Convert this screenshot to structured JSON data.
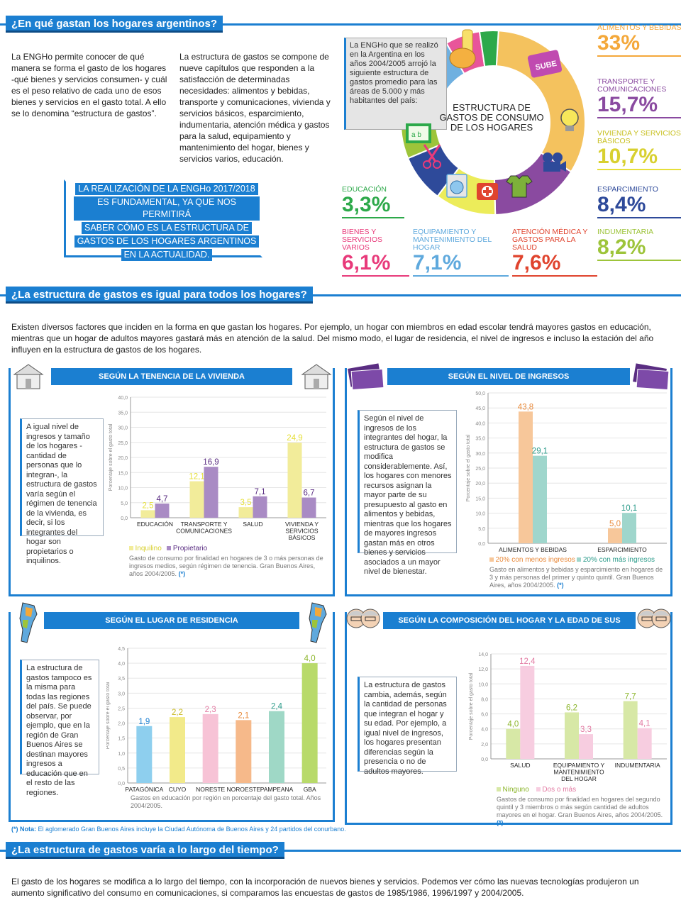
{
  "section1": {
    "title": "¿En qué gastan los hogares argentinos?",
    "para1": "La ENGHo permite conocer de qué manera se forma el gasto de los hogares -qué bienes y servicios consumen- y cuál es el peso relativo de cada uno de esos bienes y servicios en el gasto total. A ello se lo denomina “estructura de gastos”.",
    "para2": "La estructura de gastos se compone de nueve capítulos que responden a la satisfacción de determinadas necesidades: alimentos y bebidas, transporte y comunicaciones, vivienda y servicios básicos, esparcimiento, indumentaria, atención médica y gastos para la salud, equipamiento y mantenimiento del hogar, bienes y servicios varios, educación.",
    "callout": [
      "LA REALIZACIÓN DE LA ENGHo 2017/2018",
      "ES FUNDAMENTAL, YA QUE NOS PERMITIRÁ",
      "SABER CÓMO ES LA ESTRUCTURA DE",
      "GASTOS DE LOS HOGARES ARGENTINOS",
      "EN LA ACTUALIDAD."
    ],
    "donut_note": "La ENGHo que se realizó en la Argentina en los años 2004/2005 arrojó la siguiente estructura de gastos promedio para las áreas de 5.000 y más habitantes del país:",
    "donut_center": "ESTRUCTURA DE GASTOS DE CONSUMO DE LOS HOGARES",
    "categories": [
      {
        "label": "ALIMENTOS Y BEBIDAS",
        "value": "33%",
        "color": "#f4a83a"
      },
      {
        "label": "TRANSPORTE Y COMUNICACIONES",
        "value": "15,7%",
        "color": "#8a4aa0"
      },
      {
        "label": "VIVIENDA Y SERVICIOS BÁSICOS",
        "value": "10,7%",
        "color": "#e6df3a"
      },
      {
        "label": "ESPARCIMIENTO",
        "value": "8,4%",
        "color": "#2e4a9a"
      },
      {
        "label": "INDUMENTARIA",
        "value": "8,2%",
        "color": "#9dc43a"
      },
      {
        "label": "ATENCIÓN MÉDICA Y GASTOS PARA LA SALUD",
        "value": "7,6%",
        "color": "#e0442e"
      },
      {
        "label": "EQUIPAMIENTO Y MANTENIMIENTO DEL HOGAR",
        "value": "7,1%",
        "color": "#5fa9dd"
      },
      {
        "label": "BIENES Y SERVICIOS VARIOS",
        "value": "6,1%",
        "color": "#e83a7a"
      },
      {
        "label": "EDUCACIÓN",
        "value": "3,3%",
        "color": "#2da94a"
      }
    ]
  },
  "section2": {
    "title": "¿La estructura de gastos es igual para todos los hogares?",
    "para": "Existen diversos factores que inciden en la forma en que gastan los hogares. Por ejemplo, un hogar con miembros en edad escolar tendrá mayores gastos en educación, mientras que un hogar de adultos mayores gastará más en atención de la salud. Del mismo modo, el lugar de residencia, el nivel de ingresos e incluso la estación del año influyen en la estructura de gastos de los hogares.",
    "panel1": {
      "head": "SEGÚN LA TENENCIA DE LA VIVIENDA",
      "text": "A igual nivel de ingresos y tamaño de los hogares -cantidad de personas que lo integran-, la estructura de gastos varía según el régimen de tenencia de la vivienda, es decir, si los integrantes del hogar son propietarios o inquilinos.",
      "legend": [
        "Inquilino",
        "Propietario"
      ],
      "caption": "Gasto de consumo por finalidad en hogares de 3 o más personas de ingresos medios, según régimen de tenencia. Gran Buenos Aires, años 2004/2005.",
      "caption_mark": "(*)"
    },
    "panel2": {
      "head": "SEGÚN EL NIVEL DE INGRESOS",
      "text": "Según el nivel de ingresos de los integrantes del hogar, la estructura de gastos se modifica considerablemente. Así, los hogares con menores recursos asignan la mayor parte de su presupuesto al gasto en alimentos y bebidas, mientras que los hogares de mayores ingresos gastan más en otros bienes y servicios asociados a un mayor nivel de bienestar.",
      "legend": [
        "20% con menos ingresos",
        "20% con más ingresos"
      ],
      "caption": "Gasto en alimentos y bebidas y esparcimiento en hogares de 3 y más personas del primer y quinto quintil. Gran Buenos Aires, años 2004/2005.",
      "caption_mark": "(*)"
    },
    "panel3": {
      "head": "SEGÚN EL LUGAR DE RESIDENCIA",
      "text": "La estructura de gastos tampoco es la misma para todas las regiones del país. Se puede observar, por ejemplo, que en la región de Gran Buenos Aires se destinan mayores ingresos a educación que en el resto de las regiones.",
      "caption": "Gastos en educación por región en porcentaje del gasto total. Años 2004/2005."
    },
    "panel4": {
      "head": "SEGÚN LA COMPOSICIÓN DEL HOGAR Y LA EDAD DE SUS MIEMBROS",
      "text": "La estructura de gastos cambia, además, según la cantidad de personas que integran el hogar y su edad. Por ejemplo, a igual nivel de ingresos, los hogares presentan diferencias según la presencia o no de adultos mayores.",
      "legend": [
        "Ninguno",
        "Dos o más"
      ],
      "caption": "Gastos de consumo por finalidad en hogares del segundo quintil y 3 miembros o más según cantidad de adultos mayores en el hogar. Gran Buenos Aires, años 2004/2005.",
      "caption_mark": "(*)"
    },
    "footnote_label": "(*) Nota:",
    "footnote": "El aglomerado Gran Buenos Aires incluye la Ciudad Autónoma de Buenos Aires y 24 partidos del conurbano."
  },
  "section3": {
    "title": "¿La estructura de gastos varía a lo largo del tiempo?",
    "para": "El gasto de los hogares se modifica a lo largo del tiempo, con la incorporación de nuevos bienes y servicios. Podemos ver cómo las nuevas tecnologías produjeron un aumento significativo del consumo en comunicaciones, si comparamos las encuestas de gastos de 1985/1986, 1996/1997 y 2004/2005."
  },
  "icons": {
    "sube_label": "SUBE",
    "notebook_label": "a b"
  },
  "chart_data": [
    {
      "type": "pie",
      "title": "ESTRUCTURA DE GASTOS DE CONSUMO DE LOS HOGARES",
      "categories": [
        "ALIMENTOS Y BEBIDAS",
        "TRANSPORTE Y COMUNICACIONES",
        "VIVIENDA Y SERVICIOS BÁSICOS",
        "ESPARCIMIENTO",
        "INDUMENTARIA",
        "ATENCIÓN MÉDICA Y GASTOS PARA LA SALUD",
        "EQUIPAMIENTO Y MANTENIMIENTO DEL HOGAR",
        "BIENES Y SERVICIOS VARIOS",
        "EDUCACIÓN"
      ],
      "values": [
        33,
        15.7,
        10.7,
        8.4,
        8.2,
        7.6,
        7.1,
        6.1,
        3.3
      ],
      "colors": [
        "#f4c25e",
        "#8a4aa0",
        "#ecec5a",
        "#2e4a9a",
        "#9dc43a",
        "#e0442e",
        "#6fb0e0",
        "#e8559a",
        "#2da94a"
      ]
    },
    {
      "type": "bar",
      "categories": [
        "EDUCACIÓN",
        "TRANSPORTE Y COMUNICACIONES",
        "SALUD",
        "VIVIENDA Y SERVICIOS BÁSICOS"
      ],
      "series": [
        {
          "name": "Inquilino",
          "values": [
            2.5,
            12.1,
            3.5,
            24.9
          ],
          "color": "#f2ec9a",
          "label_color": "#e6df3a"
        },
        {
          "name": "Propietario",
          "values": [
            4.7,
            16.9,
            7.1,
            6.7
          ],
          "color": "#a98bc4",
          "label_color": "#5a2d82"
        }
      ],
      "ylabel": "Porcentaje sobre el gasto total",
      "ylim": [
        0,
        40
      ],
      "yticks": [
        "0,0",
        "5,0",
        "10,0",
        "15,0",
        "20,0",
        "25,0",
        "30,0",
        "35,0",
        "40,0"
      ],
      "value_labels": [
        [
          "2,5",
          "12,1",
          "3,5",
          "24,9"
        ],
        [
          "4,7",
          "16,9",
          "7,1",
          "6,7"
        ]
      ]
    },
    {
      "type": "bar",
      "categories": [
        "ALIMENTOS Y BEBIDAS",
        "ESPARCIMIENTO"
      ],
      "series": [
        {
          "name": "20% con menos ingresos",
          "values": [
            43.8,
            5.0
          ],
          "color": "#f7c79a",
          "label_color": "#e8893a"
        },
        {
          "name": "20% con más ingresos",
          "values": [
            29.1,
            10.1
          ],
          "color": "#9fd6cc",
          "label_color": "#2b9b8a"
        }
      ],
      "ylabel": "Porcentaje sobre el gasto total",
      "ylim": [
        0,
        50
      ],
      "yticks": [
        "0,0",
        "5,0",
        "10,0",
        "15,0",
        "20,0",
        "25,0",
        "30,0",
        "35,0",
        "40,0",
        "45,0",
        "50,0"
      ],
      "value_labels": [
        [
          "43,8",
          "5,0"
        ],
        [
          "29,1",
          "10,1"
        ]
      ]
    },
    {
      "type": "bar",
      "categories": [
        "PATAGÓNICA",
        "CUYO",
        "NORESTE",
        "NOROESTE",
        "PAMPEANA",
        "GBA"
      ],
      "values": [
        1.9,
        2.2,
        2.3,
        2.1,
        2.4,
        4.0
      ],
      "value_labels": [
        "1,9",
        "2,2",
        "2,3",
        "2,1",
        "2,4",
        "4,0"
      ],
      "colors": [
        "#8ecfee",
        "#f2ea8a",
        "#f7c3d6",
        "#f6b98a",
        "#9fd8c6",
        "#b8da6a"
      ],
      "label_colors": [
        "#1b7fd1",
        "#c8b820",
        "#e27aa2",
        "#e8893a",
        "#2b9b8a",
        "#8bb52a"
      ],
      "ylabel": "Porcentaje sobre el gasto total",
      "ylim": [
        0,
        4.5
      ],
      "yticks": [
        "0,0",
        "0,5",
        "1,0",
        "1,5",
        "2,0",
        "2,5",
        "3,0",
        "3,5",
        "4,0",
        "4,5"
      ]
    },
    {
      "type": "bar",
      "categories": [
        "SALUD",
        "EQUIPAMIENTO Y MANTENIMIENTO DEL HOGAR",
        "INDUMENTARIA"
      ],
      "series": [
        {
          "name": "Ninguno",
          "values": [
            4.0,
            6.2,
            7.7
          ],
          "color": "#d7e8a6",
          "label_color": "#8bb52a"
        },
        {
          "name": "Dos o más",
          "values": [
            12.4,
            3.3,
            4.1
          ],
          "color": "#f7cde0",
          "label_color": "#e27aa2"
        }
      ],
      "ylabel": "Porcentaje sobre el gasto total",
      "ylim": [
        0,
        14
      ],
      "yticks": [
        "0,0",
        "2,0",
        "4,0",
        "6,0",
        "8,0",
        "10,0",
        "12,0",
        "14,0"
      ],
      "value_labels": [
        [
          "4,0",
          "6,2",
          "7,7"
        ],
        [
          "12,4",
          "3,3",
          "4,1"
        ]
      ]
    }
  ]
}
